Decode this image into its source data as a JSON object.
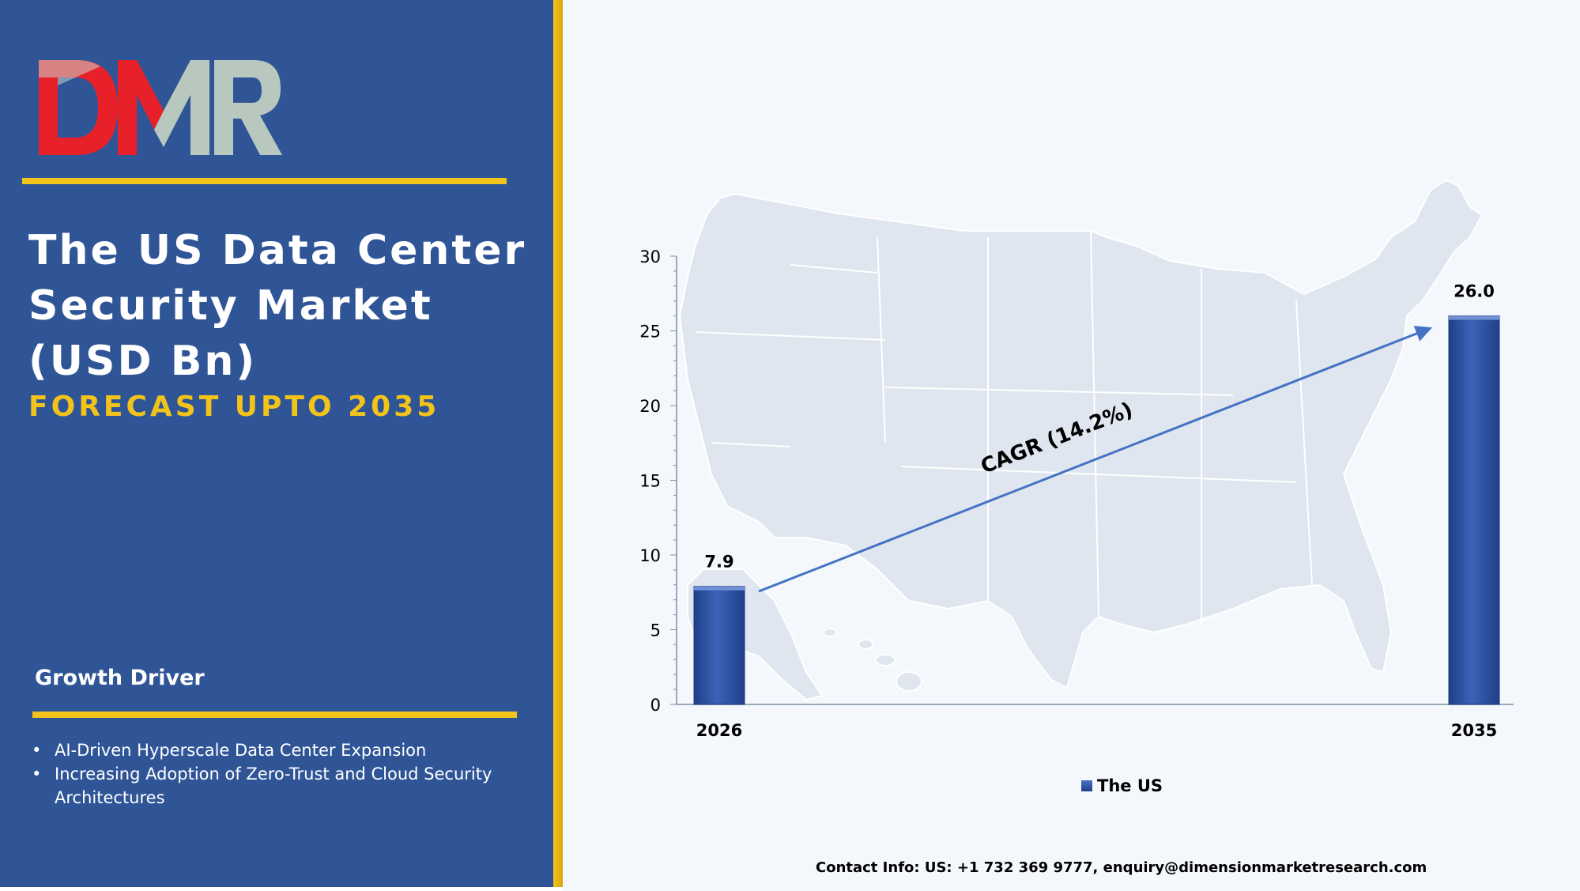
{
  "logo": {
    "text": "DMR",
    "colors": {
      "d": "#e8202a",
      "m_left": "#e8202a",
      "m_right": "#b9c8bf",
      "r": "#b9c8bf"
    }
  },
  "header": {
    "title": "The US Data Center Security Market (USD Bn)",
    "subtitle": "FORECAST UPTO 2035"
  },
  "growth": {
    "heading": "Growth Driver",
    "drivers": [
      "AI-Driven Hyperscale Data Center Expansion",
      "Increasing Adoption of Zero-Trust and Cloud Security Architectures"
    ]
  },
  "chart_data": {
    "type": "bar",
    "categories": [
      "2026",
      "2035"
    ],
    "series": [
      {
        "name": "The US",
        "values": [
          7.9,
          26.0
        ],
        "value_labels": [
          "7.9",
          "26.0"
        ]
      }
    ],
    "ylim": [
      0,
      30
    ],
    "yticks": [
      0,
      5,
      10,
      15,
      20,
      25,
      30
    ],
    "grid": false,
    "legend": "bottom",
    "annotation": "CAGR (14.2%)",
    "background_image": "us-map"
  },
  "footer": {
    "contact": "Contact Info: US: +1 732 369 9777, enquiry@dimensionmarketresearch.com"
  },
  "colors": {
    "left_panel": "#2f5597",
    "accent": "#f2c31a",
    "bar": "#2c4e9e",
    "arrow": "#4472c4",
    "map": "#dfe6ef"
  }
}
